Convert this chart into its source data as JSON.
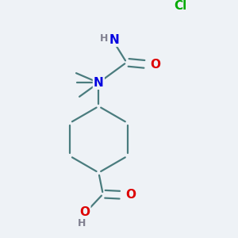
{
  "bg_color": "#eef2f6",
  "atom_colors": {
    "C": "#4a7c7e",
    "N": "#0000e0",
    "O": "#dd0000",
    "Cl": "#00aa00",
    "H": "#808090"
  },
  "bond_color": "#4a7c7e",
  "bond_width": 1.6,
  "dbo": 0.018
}
